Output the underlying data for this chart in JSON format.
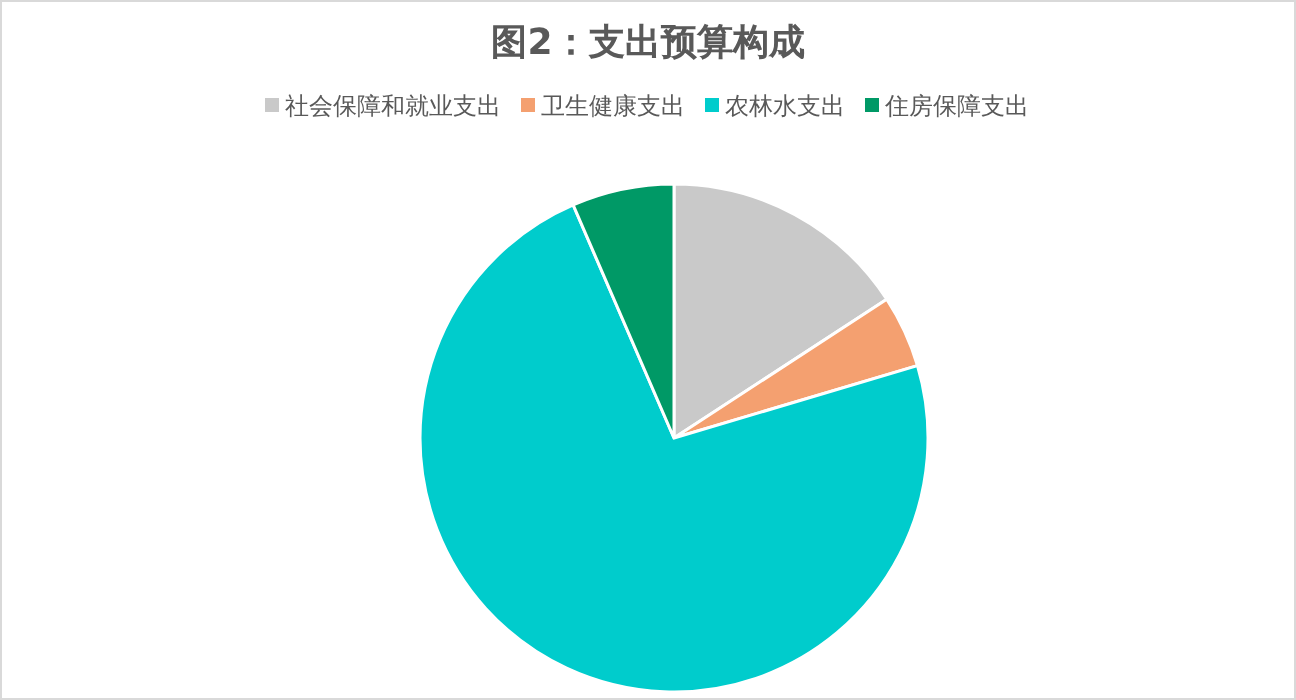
{
  "chart_data": {
    "type": "pie",
    "title": "图2：支出预算构成",
    "legend": "top",
    "categories": [
      "社会保障和就业支出",
      "卫生健康支出",
      "农林水支出",
      "住房保障支出"
    ],
    "values": [
      15.8,
      4.6,
      73.1,
      6.5
    ],
    "colors": [
      "#c9c9c9",
      "#f4a070",
      "#00cccc",
      "#009966"
    ]
  }
}
